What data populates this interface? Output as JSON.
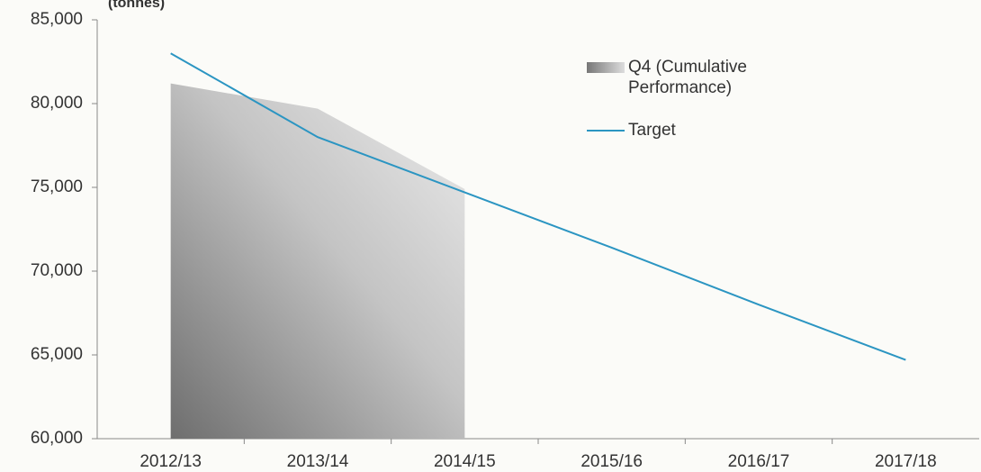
{
  "chart_data": {
    "type": "line",
    "y_axis_label": "(tonnes)",
    "categories": [
      "2012/13",
      "2013/14",
      "2014/15",
      "2015/16",
      "2016/17",
      "2017/18"
    ],
    "series": [
      {
        "name": "Q4 (Cumulative Performance)",
        "type": "area",
        "color": "#9a9a9a",
        "values": [
          81200,
          79700,
          74900,
          null,
          null,
          null
        ]
      },
      {
        "name": "Target",
        "type": "line",
        "color": "#2b95c2",
        "values": [
          83000,
          78000,
          74700,
          71400,
          68000,
          64700
        ]
      }
    ],
    "ylim": [
      60000,
      85000
    ],
    "yticks": [
      {
        "value": 60000,
        "label": "60,000"
      },
      {
        "value": 65000,
        "label": "65,000"
      },
      {
        "value": 70000,
        "label": "70,000"
      },
      {
        "value": 75000,
        "label": "75,000"
      },
      {
        "value": 80000,
        "label": "80,000"
      },
      {
        "value": 85000,
        "label": "85,000"
      }
    ],
    "grid": false,
    "legend": "upper right"
  }
}
